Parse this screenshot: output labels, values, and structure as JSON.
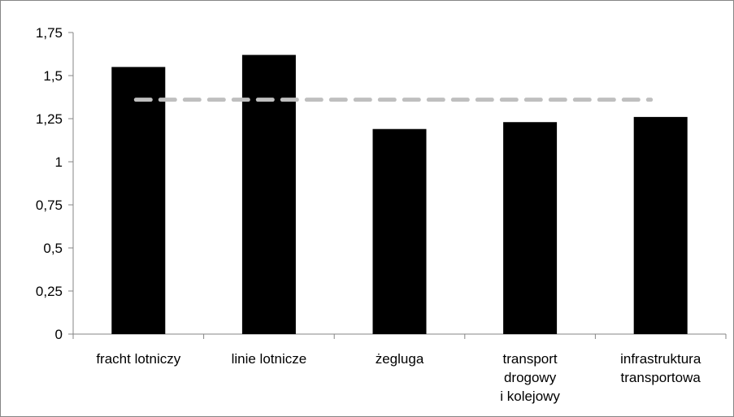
{
  "chart_data": {
    "type": "bar",
    "categories": [
      [
        "fracht lotniczy"
      ],
      [
        "linie lotnicze"
      ],
      [
        "żegluga"
      ],
      [
        "transport",
        "drogowy",
        "i kolejowy"
      ],
      [
        "infrastruktura",
        "transportowa"
      ]
    ],
    "values": [
      1.55,
      1.62,
      1.19,
      1.23,
      1.26
    ],
    "reference_line": 1.36,
    "ylim": [
      0,
      1.75
    ],
    "yticks": [
      0,
      0.25,
      0.5,
      0.75,
      1,
      1.25,
      1.5,
      1.75
    ],
    "ytick_labels": [
      "0",
      "0,25",
      "0,5",
      "0,75",
      "1",
      "1,25",
      "1,5",
      "1,75"
    ],
    "title": "",
    "xlabel": "",
    "ylabel": "",
    "grid": false,
    "legend": "none",
    "colors": {
      "bar": "#000000",
      "reference_line": "#bfbfbf",
      "axis": "#868686",
      "frame": "#868686"
    }
  }
}
